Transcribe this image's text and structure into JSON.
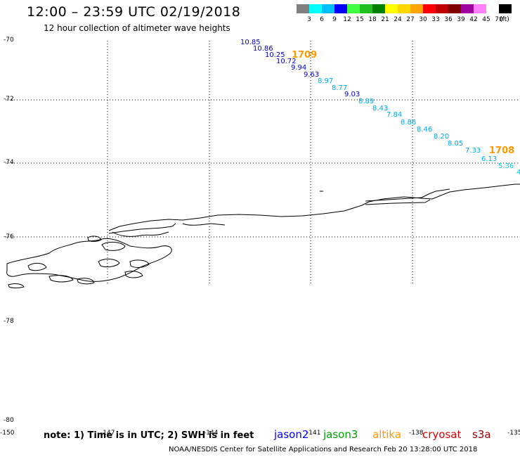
{
  "header": {
    "title": "12:00 – 23:59 UTC 02/19/2018",
    "subtitle": "12 hour collection of altimeter wave heights"
  },
  "colorbar": {
    "colors": [
      "#808080",
      "#00ffff",
      "#00bfff",
      "#0000ff",
      "#40ff40",
      "#20c020",
      "#008000",
      "#ffff00",
      "#ffd700",
      "#ffa500",
      "#ff0000",
      "#c00000",
      "#800000",
      "#a000a0",
      "#ff80ff",
      "#ffffff",
      "#000000"
    ],
    "labels": [
      "3",
      "6",
      "9",
      "12",
      "15",
      "18",
      "21",
      "24",
      "27",
      "30",
      "33",
      "36",
      "39",
      "42",
      "45",
      "70"
    ],
    "unit": "(ft)"
  },
  "axes": {
    "lat_labels": [
      "-70",
      "-72",
      "-74",
      "-76",
      "-78",
      "-80"
    ],
    "lon_labels": [
      "-150",
      "-147",
      "-144",
      "-141",
      "-138",
      "-135"
    ]
  },
  "tracks": [
    {
      "time_label": "1709",
      "time_color": "#ff9900",
      "points": [
        {
          "value": "10.85",
          "color": "#0000cc"
        },
        {
          "value": "10.86",
          "color": "#0000cc"
        },
        {
          "value": "10.25",
          "color": "#0000cc"
        },
        {
          "value": "10.72",
          "color": "#0000cc"
        },
        {
          "value": "9.94",
          "color": "#0000cc"
        },
        {
          "value": "9.63",
          "color": "#0000cc"
        },
        {
          "value": "8.97",
          "color": "#00aaee"
        },
        {
          "value": "8.77",
          "color": "#00aaee"
        },
        {
          "value": "9.03",
          "color": "#0000cc"
        },
        {
          "value": "8.89",
          "color": "#00aaee"
        },
        {
          "value": "8.43",
          "color": "#00aaee"
        },
        {
          "value": "7.84",
          "color": "#00aaee"
        },
        {
          "value": "8.86",
          "color": "#00aaee"
        },
        {
          "value": "8.46",
          "color": "#00aaee"
        },
        {
          "value": "8.20",
          "color": "#00aaee"
        },
        {
          "value": "8.05",
          "color": "#00aaee"
        },
        {
          "value": "7.33",
          "color": "#00aaee"
        }
      ]
    },
    {
      "time_label": "1708",
      "time_color": "#ff9900",
      "points": [
        {
          "value": "6.13",
          "color": "#00aaee"
        },
        {
          "value": "5.36",
          "color": "#00ccee"
        },
        {
          "value": "4",
          "color": "#00ccee"
        }
      ]
    }
  ],
  "footer": {
    "note": "note: 1) Time is in UTC; 2) SWH is in feet",
    "satellites": [
      {
        "name": "jason2",
        "color": "#0000ff"
      },
      {
        "name": "jason3",
        "color": "#00a000"
      },
      {
        "name": "altika",
        "color": "#ff9900"
      },
      {
        "name": "cryosat",
        "color": "#dd0000"
      },
      {
        "name": "s3a",
        "color": "#990000"
      }
    ],
    "credit": "NOAA/NESDIS Center for Satellite Applications and Research    Feb 20 13:28:00 UTC 2018"
  }
}
